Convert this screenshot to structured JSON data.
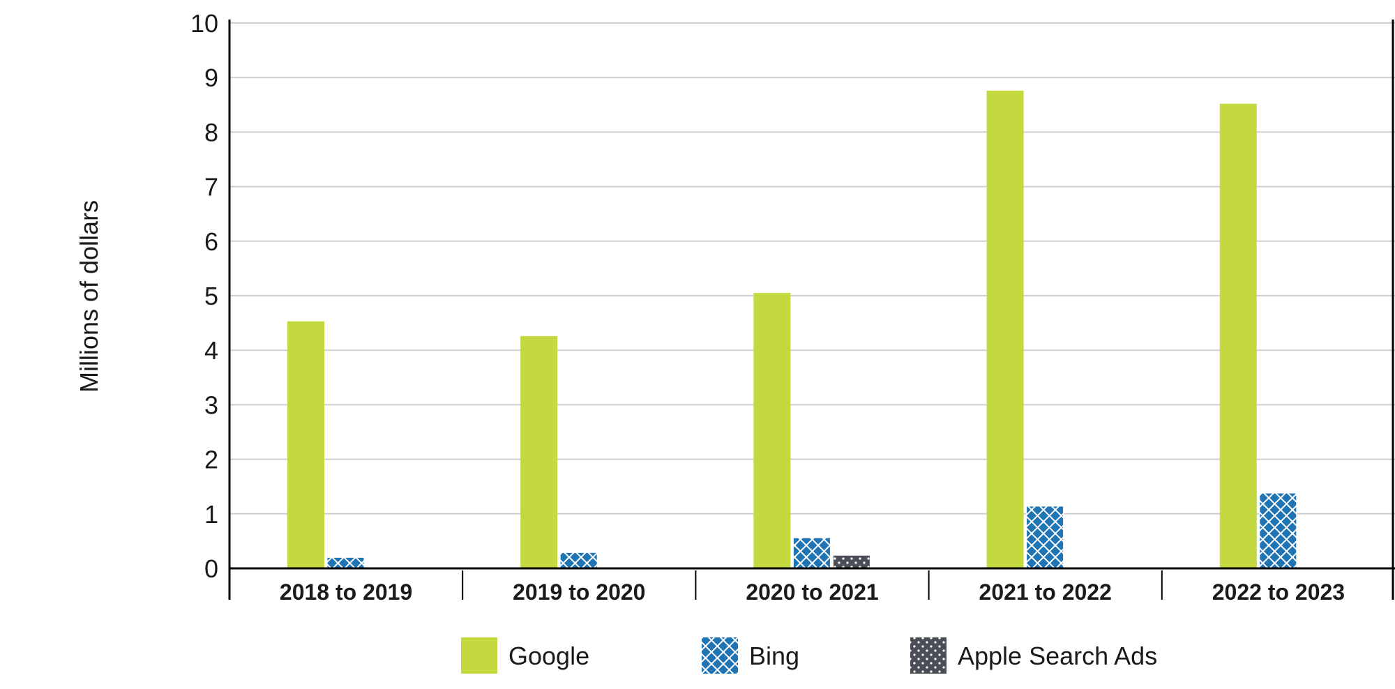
{
  "chart_data": {
    "type": "bar",
    "categories": [
      "2018 to 2019",
      "2019 to 2020",
      "2020 to 2021",
      "2021 to 2022",
      "2022 to 2023"
    ],
    "series": [
      {
        "name": "Google",
        "values": [
          4.53,
          4.26,
          5.05,
          8.76,
          8.52
        ],
        "color": "#c3d93f",
        "pattern": "solid"
      },
      {
        "name": "Bing",
        "values": [
          0.2,
          0.29,
          0.56,
          1.14,
          1.38
        ],
        "color": "#1f74b4",
        "pattern": "crosshatch"
      },
      {
        "name": "Apple Search Ads",
        "values": [
          0,
          0,
          0.24,
          0,
          0
        ],
        "color": "#4a4f57",
        "pattern": "dots"
      }
    ],
    "ylabel": "Millions of dollars",
    "xlabel": "",
    "ylim": [
      0,
      10
    ],
    "yticks": [
      "0",
      "1",
      "2",
      "3",
      "4",
      "5",
      "6",
      "7",
      "8",
      "9",
      "10"
    ],
    "grid": true,
    "legend_position": "bottom"
  }
}
